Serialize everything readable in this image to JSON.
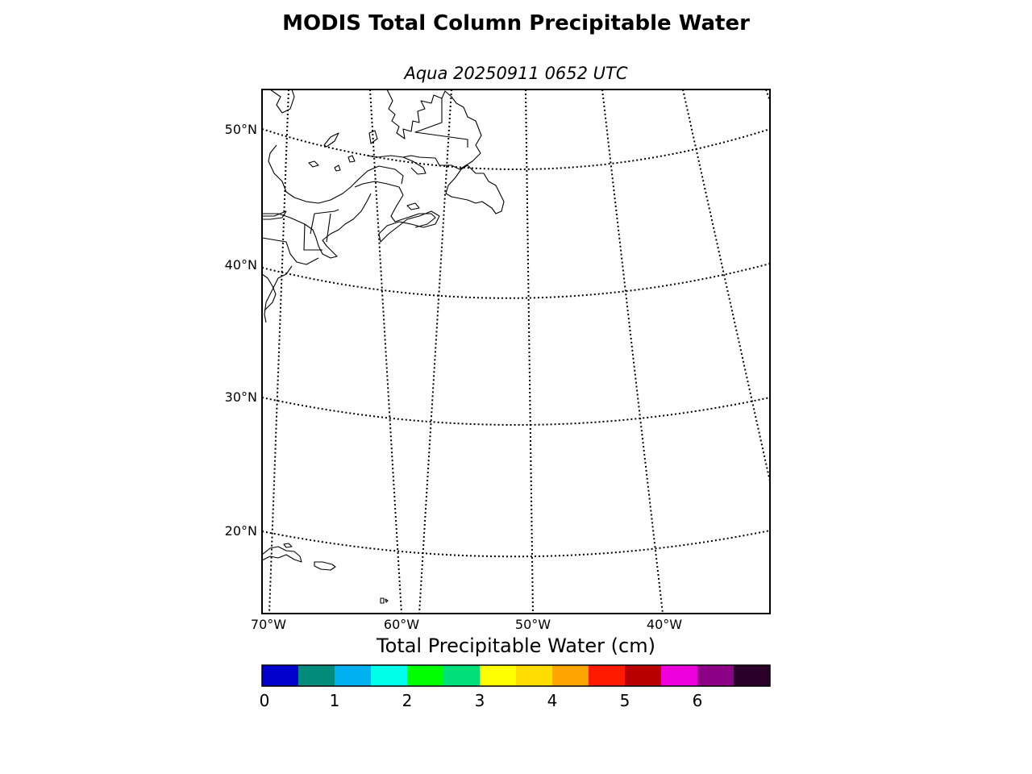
{
  "title": "MODIS Total Column Precipitable Water",
  "subtitle": "Aqua 20250911 0652 UTC",
  "map": {
    "latitude_labels": [
      "50°N",
      "40°N",
      "30°N",
      "20°N"
    ],
    "longitude_labels": [
      "70°W",
      "60°W",
      "50°W",
      "40°W"
    ],
    "gridlines": "dotted",
    "line_color": "#000000",
    "background": "#ffffff"
  },
  "colorbar": {
    "label": "Total Precipitable Water (cm)",
    "min": 0,
    "max": 7,
    "tick_labels": [
      "0",
      "1",
      "2",
      "3",
      "4",
      "5",
      "6"
    ],
    "colors": [
      "#0000cd",
      "#008b7a",
      "#00b0f0",
      "#00ffe8",
      "#00ff00",
      "#00e07a",
      "#ffff00",
      "#ffdd00",
      "#ffa500",
      "#ff1a00",
      "#b80000",
      "#ee00dd",
      "#8b0085",
      "#2a0028"
    ]
  }
}
